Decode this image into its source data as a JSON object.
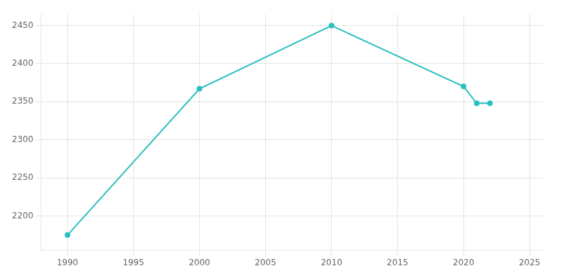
{
  "chart_data": {
    "type": "line",
    "x": [
      1990,
      2000,
      2010,
      2020,
      2021,
      2022
    ],
    "values": [
      2175,
      2367,
      2450,
      2370,
      2348,
      2348
    ],
    "color": "#2abfbf",
    "marker": "circle",
    "xlim": [
      1988,
      2026
    ],
    "ylim": [
      2155,
      2465
    ],
    "xticks": [
      1990,
      1995,
      2000,
      2005,
      2010,
      2015,
      2020,
      2025
    ],
    "yticks": [
      2200,
      2250,
      2300,
      2350,
      2400,
      2450
    ],
    "grid": true
  }
}
